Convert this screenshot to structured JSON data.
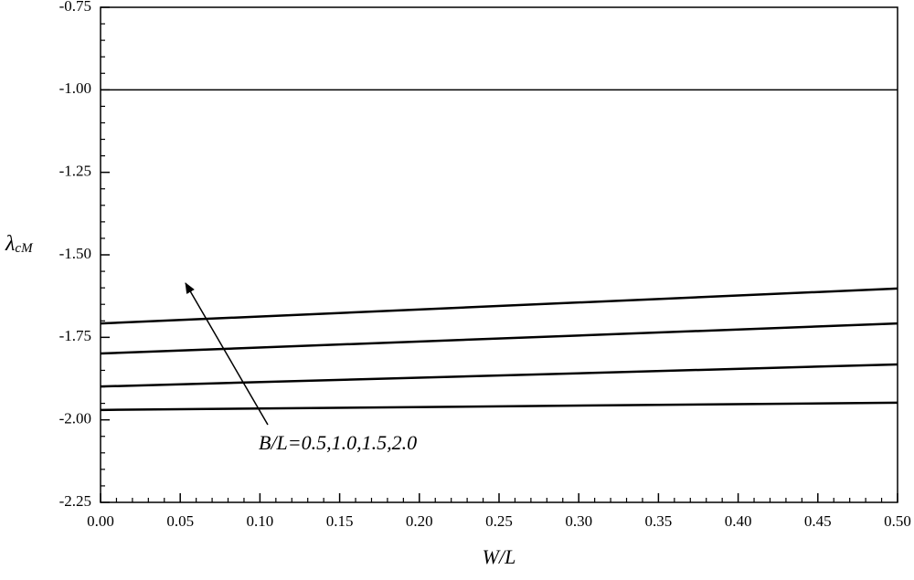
{
  "chart_data": {
    "type": "line",
    "ylabel": "λ",
    "ylabel_subscript": "cM",
    "xlabel": "W/L",
    "annotation": "B/L=0.5,1.0,1.5,2.0",
    "x": [
      0,
      0.5
    ],
    "series": [
      {
        "color": "#000000",
        "values": [
          -1.0,
          -1.0
        ]
      },
      {
        "color": "#000000",
        "values": [
          -1.708,
          -1.602
        ]
      },
      {
        "color": "#000000",
        "values": [
          -1.799,
          -1.708
        ]
      },
      {
        "color": "#000000",
        "values": [
          -1.899,
          -1.832
        ]
      },
      {
        "color": "#000000",
        "values": [
          -1.97,
          -1.948
        ]
      }
    ],
    "xlim": [
      0,
      0.5
    ],
    "ylim": [
      -2.25,
      -0.75
    ],
    "xticks": [
      {
        "value": 0,
        "label": "0.00"
      },
      {
        "value": 0.05,
        "label": "0.05"
      },
      {
        "value": 0.1,
        "label": "0.10"
      },
      {
        "value": 0.15,
        "label": "0.15"
      },
      {
        "value": 0.2,
        "label": "0.20"
      },
      {
        "value": 0.25,
        "label": "0.25"
      },
      {
        "value": 0.3,
        "label": "0.30"
      },
      {
        "value": 0.35,
        "label": "0.35"
      },
      {
        "value": 0.4,
        "label": "0.40"
      },
      {
        "value": 0.45,
        "label": "0.45"
      },
      {
        "value": 0.5,
        "label": "0.50"
      }
    ],
    "yticks": [
      {
        "value": -2.25,
        "label": "-2.25"
      },
      {
        "value": -2.0,
        "label": "-2.00"
      },
      {
        "value": -1.75,
        "label": "-1.75"
      },
      {
        "value": -1.5,
        "label": "-1.50"
      },
      {
        "value": -1.25,
        "label": "-1.25"
      },
      {
        "value": -1.0,
        "label": "-1.00"
      },
      {
        "value": -0.75,
        "label": "-0.75"
      }
    ],
    "grid": false
  }
}
